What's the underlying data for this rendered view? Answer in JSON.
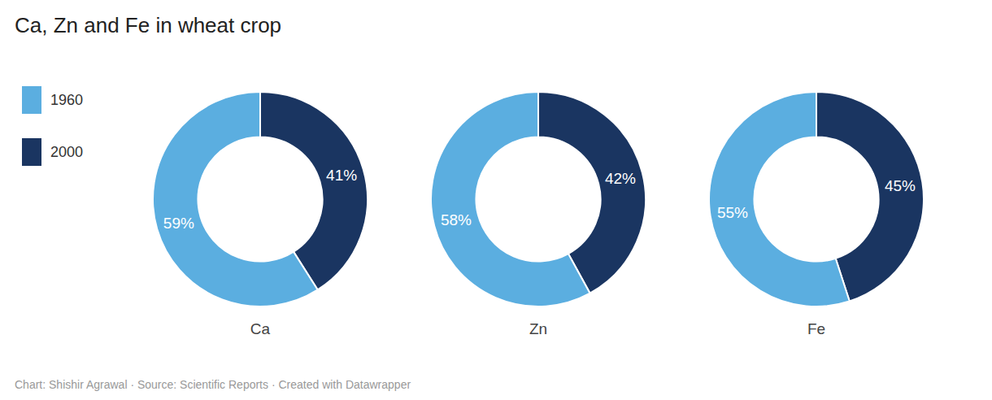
{
  "chart_data": {
    "type": "pie",
    "title": "Ca, Zn and Fe in wheat crop",
    "categories": [
      "Ca",
      "Zn",
      "Fe"
    ],
    "series": [
      {
        "name": "1960",
        "color": "#5baee0",
        "values": [
          59,
          58,
          55
        ],
        "value_labels": [
          "59%",
          "58%",
          "55%"
        ]
      },
      {
        "name": "2000",
        "color": "#1a3561",
        "values": [
          41,
          42,
          45
        ],
        "value_labels": [
          "41%",
          "42%",
          "45%"
        ]
      }
    ],
    "data_labels": true,
    "legend": "upper left",
    "annotations": [
      "Chart: Shishir Agrawal · Source: Scientific Reports · Created with Datawrapper"
    ]
  }
}
